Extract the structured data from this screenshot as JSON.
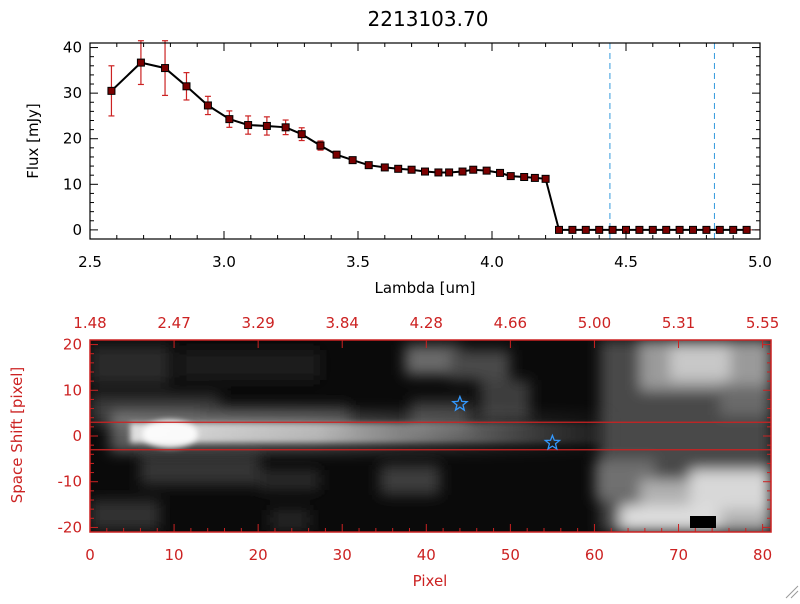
{
  "chart_data": [
    {
      "type": "line",
      "title": "2213103.70",
      "xlabel": "Lambda [um]",
      "ylabel": "Flux [mJy]",
      "xlim": [
        2.5,
        5.0
      ],
      "ylim": [
        -2,
        41
      ],
      "xticks": [
        "2.5",
        "3.0",
        "3.5",
        "4.0",
        "4.5",
        "5.0"
      ],
      "yticks": [
        "0",
        "10",
        "20",
        "30",
        "40"
      ],
      "vlines": [
        4.44,
        4.83
      ],
      "series": [
        {
          "x": [
            2.58,
            2.69,
            2.78,
            2.86,
            2.94,
            3.02,
            3.09,
            3.16,
            3.23,
            3.29,
            3.36,
            3.42,
            3.48,
            3.54,
            3.6,
            3.65,
            3.7,
            3.75,
            3.8,
            3.84,
            3.89,
            3.93,
            3.98,
            4.03,
            4.07,
            4.12,
            4.16,
            4.2,
            4.25,
            4.3,
            4.35,
            4.4,
            4.45,
            4.5,
            4.55,
            4.6,
            4.65,
            4.7,
            4.75,
            4.8,
            4.85,
            4.9,
            4.95
          ],
          "y": [
            30.5,
            36.7,
            35.5,
            31.5,
            27.3,
            24.3,
            23.0,
            22.8,
            22.5,
            21.0,
            18.5,
            16.5,
            15.3,
            14.2,
            13.7,
            13.4,
            13.2,
            12.8,
            12.6,
            12.6,
            12.8,
            13.2,
            13.0,
            12.5,
            11.8,
            11.6,
            11.4,
            11.2,
            0,
            0,
            0,
            0,
            0,
            0,
            0,
            0,
            0,
            0,
            0,
            0,
            0,
            0,
            0
          ],
          "yerr": [
            5.5,
            4.8,
            6.0,
            3.0,
            2.0,
            1.8,
            2.0,
            2.0,
            1.6,
            1.4,
            1.0,
            0.7,
            0.6,
            0.5,
            0.4,
            0.4,
            0.4,
            0.4,
            0.4,
            0.4,
            0.4,
            0.4,
            0.4,
            0.4,
            0.4,
            0.4,
            0.4,
            0.4,
            0,
            0,
            0,
            0,
            0,
            0,
            0,
            0,
            0,
            0,
            0,
            0,
            0,
            0,
            0
          ]
        }
      ]
    },
    {
      "type": "heatmap",
      "xlabel": "Pixel",
      "ylabel": "Space Shift [pixel]",
      "xlim": [
        0,
        81
      ],
      "ylim": [
        -21,
        21
      ],
      "xticks": [
        "0",
        "10",
        "20",
        "30",
        "40",
        "50",
        "60",
        "70",
        "80"
      ],
      "yticks": [
        "-20",
        "-10",
        "0",
        "10",
        "20"
      ],
      "top_ticks": [
        "1.48",
        "2.47",
        "3.29",
        "3.84",
        "4.28",
        "4.66",
        "5.00",
        "5.31",
        "5.55"
      ],
      "band": [
        -3,
        3
      ],
      "markers": [
        {
          "x": 44,
          "y": 7
        },
        {
          "x": 55,
          "y": -1.5
        }
      ]
    }
  ]
}
